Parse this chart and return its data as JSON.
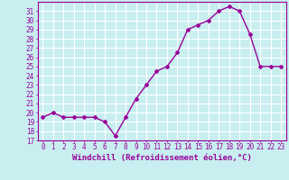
{
  "x": [
    0,
    1,
    2,
    3,
    4,
    5,
    6,
    7,
    8,
    9,
    10,
    11,
    12,
    13,
    14,
    15,
    16,
    17,
    18,
    19,
    20,
    21,
    22,
    23
  ],
  "y": [
    19.5,
    20.0,
    19.5,
    19.5,
    19.5,
    19.5,
    19.0,
    17.5,
    19.5,
    21.5,
    23.0,
    24.5,
    25.0,
    26.5,
    29.0,
    29.5,
    30.0,
    31.0,
    31.5,
    31.0,
    28.5,
    25.0,
    25.0,
    25.0
  ],
  "line_color": "#990099",
  "marker": "D",
  "marker_size": 2,
  "bg_color": "#c8eef0",
  "grid_color": "#ffffff",
  "xlabel": "Windchill (Refroidissement éolien,°C)",
  "ylabel": "",
  "ylim": [
    17,
    32
  ],
  "xlim": [
    -0.5,
    23.5
  ],
  "yticks": [
    17,
    18,
    19,
    20,
    21,
    22,
    23,
    24,
    25,
    26,
    27,
    28,
    29,
    30,
    31
  ],
  "xticks": [
    0,
    1,
    2,
    3,
    4,
    5,
    6,
    7,
    8,
    9,
    10,
    11,
    12,
    13,
    14,
    15,
    16,
    17,
    18,
    19,
    20,
    21,
    22,
    23
  ],
  "tick_fontsize": 5.5,
  "xlabel_fontsize": 6.5,
  "line_width": 1.0
}
